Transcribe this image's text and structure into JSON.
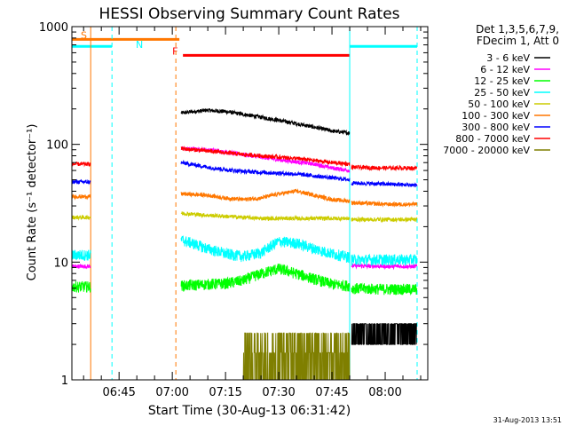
{
  "chart_data": {
    "type": "line",
    "title": "HESSI Observing Summary Count Rates",
    "xlabel": "Start Time (30-Aug-13 06:31:42)",
    "ylabel": "Count Rate (s⁻¹ detector⁻¹)",
    "yscale": "log",
    "ylim": [
      1,
      1000
    ],
    "xlim": [
      "06:31:42",
      "08:12:00"
    ],
    "x_ticks": [
      "06:45",
      "07:00",
      "07:15",
      "07:30",
      "07:45",
      "08:00"
    ],
    "y_ticks": [
      "1",
      "10",
      "100",
      "1000"
    ],
    "timestamp": "31-Aug-2013 13:51",
    "legend_header": [
      "Det 1,3,5,6,7,9,",
      "FDecim 1, Att 0"
    ],
    "gaps": [
      [
        "06:37:00",
        "07:02:30"
      ],
      [
        "07:50:00",
        "07:50:30"
      ]
    ],
    "series": [
      {
        "name": "3 - 6 keV",
        "color": "#000000",
        "times": [
          "07:02:30",
          "07:10",
          "07:15",
          "07:20",
          "07:25",
          "07:30",
          "07:35",
          "07:40",
          "07:45",
          "07:50",
          "07:50:30",
          "08:00",
          "08:09"
        ],
        "values": [
          185,
          195,
          190,
          180,
          170,
          160,
          150,
          140,
          130,
          125,
          2.4,
          2.4,
          2.4
        ]
      },
      {
        "name": "6 - 12 keV",
        "color": "#ff00ff",
        "times": [
          "06:31:42",
          "06:37",
          "07:02:30",
          "07:10",
          "07:15",
          "07:20",
          "07:25",
          "07:30",
          "07:35",
          "07:40",
          "07:45",
          "07:50",
          "07:50:30",
          "08:00",
          "08:09"
        ],
        "values": [
          9.2,
          9.2,
          92,
          90,
          86,
          82,
          78,
          74,
          71,
          68,
          63,
          60,
          9.3,
          9.2,
          9.2
        ]
      },
      {
        "name": "12 - 25 keV",
        "color": "#00ff00",
        "times": [
          "06:31:42",
          "06:37",
          "07:02:30",
          "07:10",
          "07:15",
          "07:20",
          "07:25",
          "07:30",
          "07:35",
          "07:40",
          "07:45",
          "07:50",
          "07:50:30",
          "08:00",
          "08:09"
        ],
        "values": [
          6.2,
          6.2,
          6.3,
          6.5,
          6.6,
          7,
          8,
          8.8,
          8,
          7.2,
          6.5,
          6.3,
          6,
          5.9,
          5.9
        ]
      },
      {
        "name": "25 - 50 keV",
        "color": "#00ffff",
        "times": [
          "06:31:42",
          "06:37",
          "07:02:30",
          "07:10",
          "07:15",
          "07:20",
          "07:25",
          "07:30",
          "07:35",
          "07:40",
          "07:45",
          "07:50",
          "07:50:30",
          "08:00",
          "08:09"
        ],
        "values": [
          11.5,
          11.5,
          15.5,
          13,
          11.8,
          11.2,
          12,
          15,
          14.5,
          13,
          11.8,
          11,
          10.5,
          10.5,
          10.5
        ]
      },
      {
        "name": "50 - 100 keV",
        "color": "#cccc00",
        "times": [
          "06:31:42",
          "06:37",
          "07:02:30",
          "07:10",
          "07:15",
          "07:20",
          "07:25",
          "07:30",
          "07:35",
          "07:40",
          "07:45",
          "07:50",
          "07:50:30",
          "08:00",
          "08:09"
        ],
        "values": [
          24,
          24,
          26,
          25,
          24.5,
          24,
          23.5,
          23.5,
          23.5,
          23.5,
          23.5,
          23.5,
          23,
          23,
          23
        ]
      },
      {
        "name": "100 - 300 keV",
        "color": "#ff7700",
        "times": [
          "06:31:42",
          "06:37",
          "07:02:30",
          "07:10",
          "07:15",
          "07:20",
          "07:25",
          "07:30",
          "07:35",
          "07:40",
          "07:45",
          "07:50",
          "07:50:30",
          "08:00",
          "08:09"
        ],
        "values": [
          36,
          36,
          38,
          37,
          35,
          34,
          35,
          38,
          40,
          37,
          34,
          33,
          32,
          31,
          31
        ]
      },
      {
        "name": "300 - 800 keV",
        "color": "#0000ff",
        "times": [
          "06:31:42",
          "06:37",
          "07:02:30",
          "07:10",
          "07:15",
          "07:20",
          "07:25",
          "07:30",
          "07:35",
          "07:40",
          "07:45",
          "07:50",
          "07:50:30",
          "08:00",
          "08:09"
        ],
        "values": [
          48,
          48,
          70,
          64,
          61,
          59,
          58,
          57,
          56,
          54,
          52,
          50,
          47,
          46,
          45
        ]
      },
      {
        "name": "800 - 7000 keV",
        "color": "#ff0000",
        "times": [
          "06:31:42",
          "06:37",
          "07:02:30",
          "07:10",
          "07:15",
          "07:20",
          "07:25",
          "07:30",
          "07:35",
          "07:40",
          "07:45",
          "07:50",
          "07:50:30",
          "08:00",
          "08:09"
        ],
        "values": [
          68,
          68,
          92,
          88,
          85,
          82,
          80,
          78,
          76,
          73,
          70,
          68,
          64,
          63,
          63
        ]
      },
      {
        "name": "7000 - 20000 keV",
        "color": "#7f7f00",
        "times": [
          "07:02:30",
          "07:20",
          "07:24",
          "07:28",
          "07:32",
          "07:36",
          "07:40",
          "07:44",
          "07:48",
          "07:50"
        ],
        "values": [
          0,
          0,
          2.5,
          2.5,
          2.5,
          2.5,
          2.5,
          2.5,
          2.5,
          0
        ]
      }
    ],
    "flag_bars": [
      {
        "label": "S",
        "color": "#ff7700",
        "start": "06:31:42",
        "end": "07:02:00",
        "level": 780
      },
      {
        "label": "N",
        "color": "#00ffff",
        "start": "06:31:42",
        "end": "06:43:00",
        "level": 680
      },
      {
        "label": "F",
        "color": "#ff0000",
        "start": "07:03:00",
        "end": "07:50:00",
        "level": 570
      },
      {
        "label": "",
        "color": "#00ffff",
        "start": "07:50:00",
        "end": "08:09:00",
        "level": 680
      }
    ],
    "vertical_markers": [
      {
        "color": "#ff7700",
        "style": "solid",
        "time": "06:37:00"
      },
      {
        "color": "#00ffff",
        "style": "dashed",
        "time": "06:43:00"
      },
      {
        "color": "#ff7700",
        "style": "dashed",
        "time": "07:01:00"
      },
      {
        "color": "#00ffff",
        "style": "solid",
        "time": "07:50:00"
      },
      {
        "color": "#00ffff",
        "style": "dashed",
        "time": "08:09:00"
      }
    ]
  }
}
